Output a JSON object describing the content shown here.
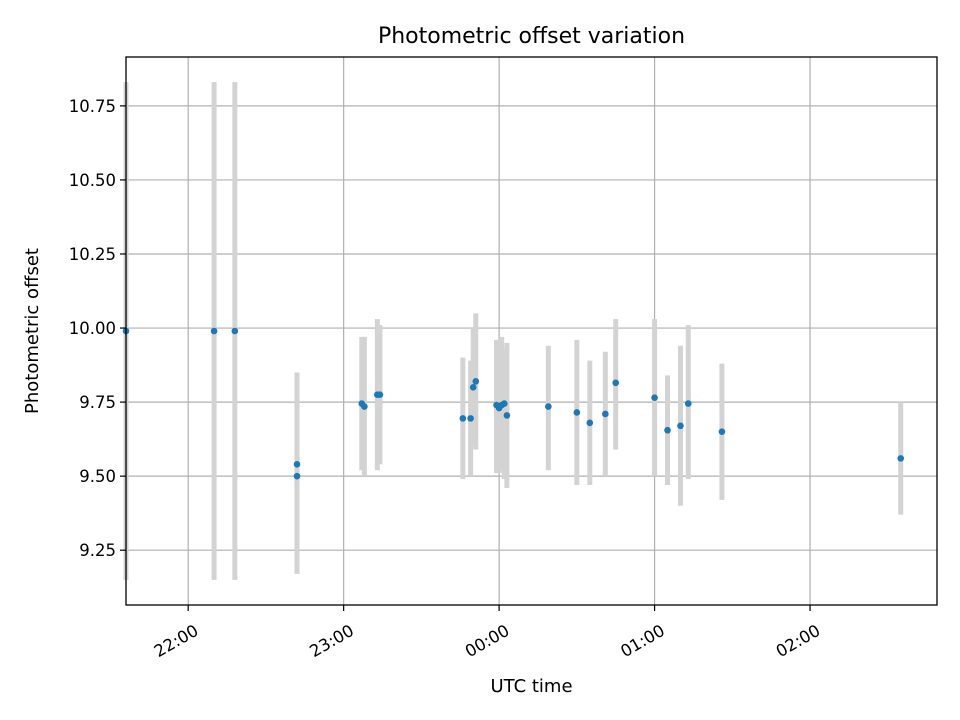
{
  "chart_data": {
    "type": "scatter",
    "title": "Photometric offset variation",
    "xlabel": "UTC time",
    "ylabel": "Photometric offset",
    "xlim": [
      "21:36",
      "02:49"
    ],
    "ylim": [
      9.065,
      10.915
    ],
    "grid": true,
    "x_ticks": [
      "22:00",
      "23:00",
      "00:00",
      "01:00",
      "02:00"
    ],
    "y_ticks": [
      9.25,
      9.5,
      9.75,
      10.0,
      10.25,
      10.5,
      10.75
    ],
    "y_tick_labels": [
      "9.25",
      "9.50",
      "9.75",
      "10.00",
      "10.25",
      "10.50",
      "10.75"
    ],
    "marker_color": "#1f77b4",
    "errorbar_color": "#d3d3d3",
    "points": [
      {
        "x": "21:36",
        "y": 9.99,
        "lo": 9.15,
        "hi": 10.83
      },
      {
        "x": "22:10",
        "y": 9.99,
        "lo": 9.15,
        "hi": 10.83
      },
      {
        "x": "22:18",
        "y": 9.99,
        "lo": 9.15,
        "hi": 10.83
      },
      {
        "x": "22:42",
        "y": 9.54,
        "lo": 9.25,
        "hi": 9.85
      },
      {
        "x": "22:42",
        "y": 9.5,
        "lo": 9.17,
        "hi": 9.84
      },
      {
        "x": "23:07",
        "y": 9.745,
        "lo": 9.52,
        "hi": 9.97
      },
      {
        "x": "23:08",
        "y": 9.735,
        "lo": 9.5,
        "hi": 9.97
      },
      {
        "x": "23:13",
        "y": 9.775,
        "lo": 9.52,
        "hi": 10.03
      },
      {
        "x": "23:14",
        "y": 9.775,
        "lo": 9.54,
        "hi": 10.01
      },
      {
        "x": "23:46",
        "y": 9.695,
        "lo": 9.49,
        "hi": 9.9
      },
      {
        "x": "23:49",
        "y": 9.695,
        "lo": 9.5,
        "hi": 9.89
      },
      {
        "x": "23:50",
        "y": 9.8,
        "lo": 9.6,
        "hi": 10.0
      },
      {
        "x": "23:51",
        "y": 9.82,
        "lo": 9.59,
        "hi": 10.05
      },
      {
        "x": "23:59",
        "y": 9.74,
        "lo": 9.51,
        "hi": 9.96
      },
      {
        "x": "00:00",
        "y": 9.73,
        "lo": 9.51,
        "hi": 9.96
      },
      {
        "x": "00:01",
        "y": 9.74,
        "lo": 9.52,
        "hi": 9.97
      },
      {
        "x": "00:02",
        "y": 9.745,
        "lo": 9.49,
        "hi": 9.93
      },
      {
        "x": "00:03",
        "y": 9.705,
        "lo": 9.46,
        "hi": 9.95
      },
      {
        "x": "00:19",
        "y": 9.735,
        "lo": 9.52,
        "hi": 9.94
      },
      {
        "x": "00:30",
        "y": 9.715,
        "lo": 9.47,
        "hi": 9.96
      },
      {
        "x": "00:35",
        "y": 9.68,
        "lo": 9.47,
        "hi": 9.89
      },
      {
        "x": "00:41",
        "y": 9.71,
        "lo": 9.5,
        "hi": 9.92
      },
      {
        "x": "00:45",
        "y": 9.815,
        "lo": 9.59,
        "hi": 10.03
      },
      {
        "x": "01:00",
        "y": 9.765,
        "lo": 9.5,
        "hi": 10.03
      },
      {
        "x": "01:05",
        "y": 9.655,
        "lo": 9.47,
        "hi": 9.84
      },
      {
        "x": "01:10",
        "y": 9.67,
        "lo": 9.4,
        "hi": 9.94
      },
      {
        "x": "01:13",
        "y": 9.745,
        "lo": 9.49,
        "hi": 10.01
      },
      {
        "x": "01:26",
        "y": 9.65,
        "lo": 9.42,
        "hi": 9.88
      },
      {
        "x": "02:35",
        "y": 9.56,
        "lo": 9.37,
        "hi": 9.75
      }
    ]
  }
}
